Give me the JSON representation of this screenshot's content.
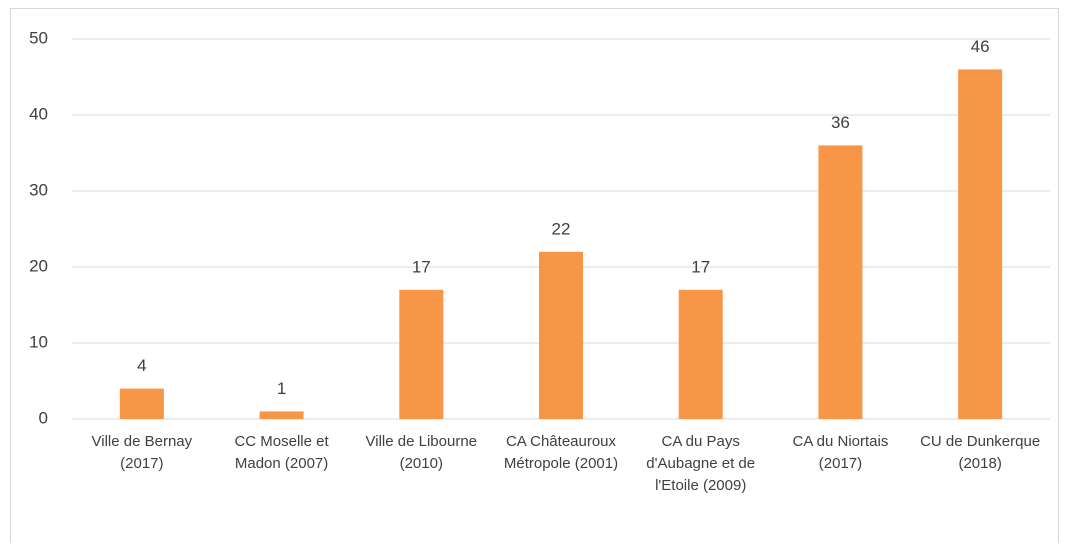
{
  "chart_data": {
    "type": "bar",
    "categories": [
      "Ville de Bernay (2017)",
      "CC Moselle et Madon (2007)",
      "Ville de Libourne (2010)",
      "CA Châteauroux Métropole (2001)",
      "CA du Pays d'Aubagne et de l'Etoile (2009)",
      "CA du Niortais (2017)",
      "CU de Dunkerque (2018)"
    ],
    "values": [
      4,
      1,
      17,
      22,
      17,
      36,
      46
    ],
    "color": "#f79646",
    "ylim": [
      0,
      50
    ],
    "yticks": [
      0,
      10,
      20,
      30,
      40,
      50
    ],
    "grid": true
  }
}
